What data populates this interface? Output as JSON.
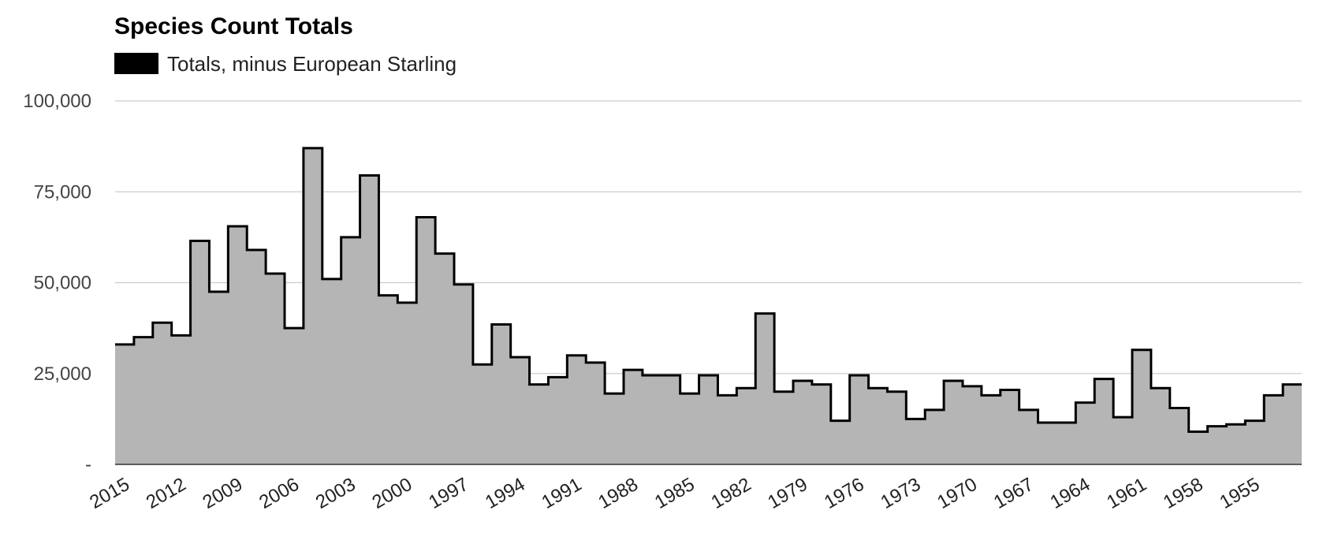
{
  "chart_data": {
    "type": "area",
    "title": "Species Count Totals",
    "legend": {
      "position": "top-left",
      "entries": [
        "Totals, minus European Starling"
      ]
    },
    "series": [
      {
        "name": "Totals, minus European Starling",
        "color": "#000000",
        "fill": "#b5b5b5",
        "x": [
          2015,
          2014,
          2013,
          2012,
          2011,
          2010,
          2009,
          2008,
          2007,
          2006,
          2005,
          2004,
          2003,
          2002,
          2001,
          2000,
          1999,
          1998,
          1997,
          1996,
          1995,
          1994,
          1993,
          1992,
          1991,
          1990,
          1989,
          1988,
          1987,
          1986,
          1985,
          1984,
          1983,
          1982,
          1981,
          1980,
          1979,
          1978,
          1977,
          1976,
          1975,
          1974,
          1973,
          1972,
          1971,
          1970,
          1969,
          1968,
          1967,
          1966,
          1965,
          1964,
          1963,
          1962,
          1961,
          1960,
          1959,
          1958,
          1957,
          1956,
          1955,
          1954,
          1953
        ],
        "values": [
          33000,
          35000,
          39000,
          35500,
          61500,
          47500,
          65500,
          59000,
          52500,
          37500,
          87000,
          51000,
          62500,
          79500,
          46500,
          44500,
          68000,
          58000,
          49500,
          27500,
          38500,
          29500,
          22000,
          24000,
          30000,
          28000,
          19500,
          26000,
          24500,
          24500,
          19500,
          24500,
          19000,
          21000,
          41500,
          20000,
          23000,
          22000,
          12000,
          24500,
          21000,
          20000,
          12500,
          15000,
          23000,
          21500,
          19000,
          20500,
          15000,
          11500,
          11500,
          17000,
          23500,
          13000,
          31500,
          21000,
          15500,
          9000,
          10500,
          11000,
          12000,
          19000,
          22000
        ]
      }
    ],
    "x_ticks": [
      "2015",
      "2012",
      "2009",
      "2006",
      "2003",
      "2000",
      "1997",
      "1994",
      "1991",
      "1988",
      "1985",
      "1982",
      "1979",
      "1976",
      "1973",
      "1970",
      "1967",
      "1964",
      "1961",
      "1958",
      "1955"
    ],
    "x_tick_years": [
      2015,
      2012,
      2009,
      2006,
      2003,
      2000,
      1997,
      1994,
      1991,
      1988,
      1985,
      1982,
      1979,
      1976,
      1973,
      1970,
      1967,
      1964,
      1961,
      1958,
      1955
    ],
    "y_ticks": [
      "-",
      "25,000",
      "50,000",
      "75,000",
      "100,000"
    ],
    "y_tick_values": [
      0,
      25000,
      50000,
      75000,
      100000
    ],
    "ylim": [
      0,
      100000
    ],
    "grid": true
  }
}
